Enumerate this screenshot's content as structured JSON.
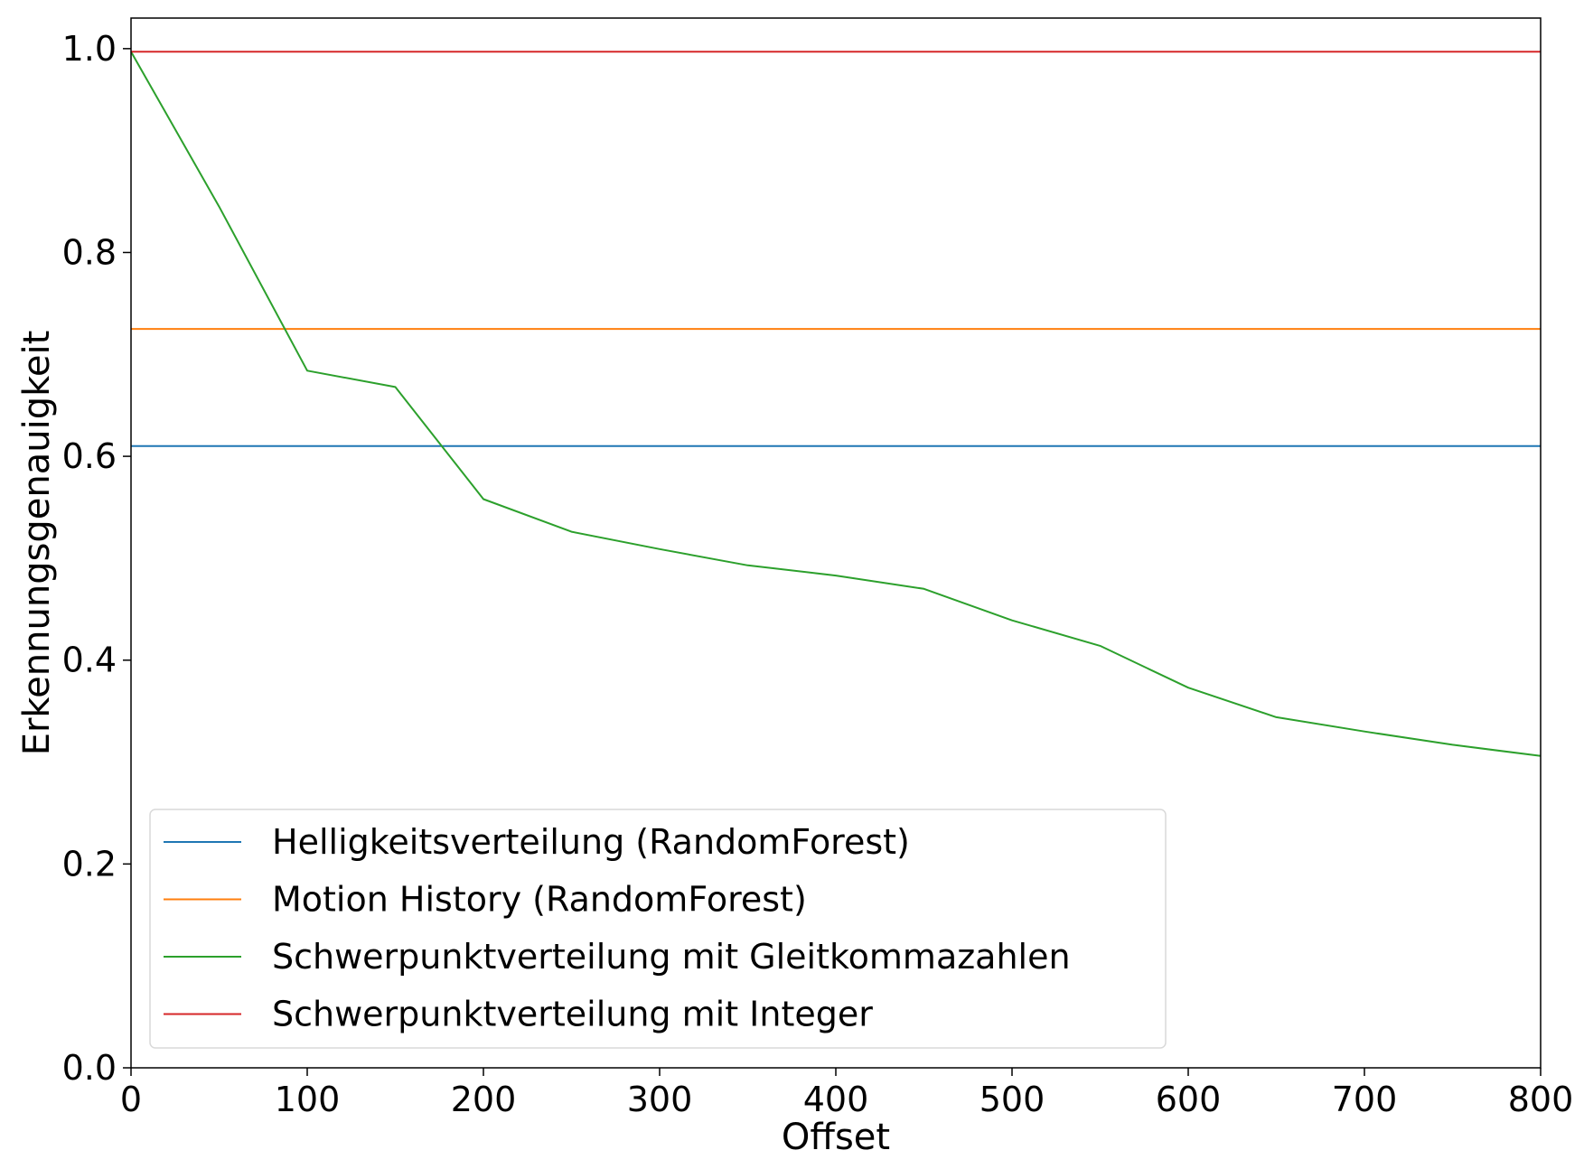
{
  "chart_data": {
    "type": "line",
    "title": "",
    "xlabel": "Offset",
    "ylabel": "Erkennungsgenauigkeit",
    "xlim": [
      0,
      800
    ],
    "ylim": [
      0.0,
      1.03
    ],
    "xticks": [
      "0",
      "100",
      "200",
      "300",
      "400",
      "500",
      "600",
      "700",
      "800"
    ],
    "yticks": [
      "0.0",
      "0.2",
      "0.4",
      "0.6",
      "0.8",
      "1.0"
    ],
    "grid": false,
    "legend_position": "bottom-left",
    "series": [
      {
        "name": "Helligkeitsverteilung (RandomForest)",
        "color": "#1f77b4",
        "x": [
          0,
          800
        ],
        "y": [
          0.61,
          0.61
        ]
      },
      {
        "name": "Motion History (RandomForest)",
        "color": "#ff7f0e",
        "x": [
          0,
          800
        ],
        "y": [
          0.725,
          0.725
        ]
      },
      {
        "name": "Schwerpunktverteilung mit Gleitkommazahlen",
        "color": "#2ca02c",
        "x": [
          0,
          50,
          100,
          150,
          200,
          250,
          300,
          350,
          400,
          450,
          500,
          550,
          600,
          650,
          700,
          750,
          800
        ],
        "y": [
          0.997,
          0.845,
          0.684,
          0.668,
          0.558,
          0.526,
          0.509,
          0.493,
          0.483,
          0.47,
          0.439,
          0.414,
          0.373,
          0.344,
          0.33,
          0.317,
          0.306
        ]
      },
      {
        "name": "Schwerpunktverteilung mit Integer",
        "color": "#d62728",
        "x": [
          0,
          800
        ],
        "y": [
          0.997,
          0.997
        ]
      }
    ]
  }
}
